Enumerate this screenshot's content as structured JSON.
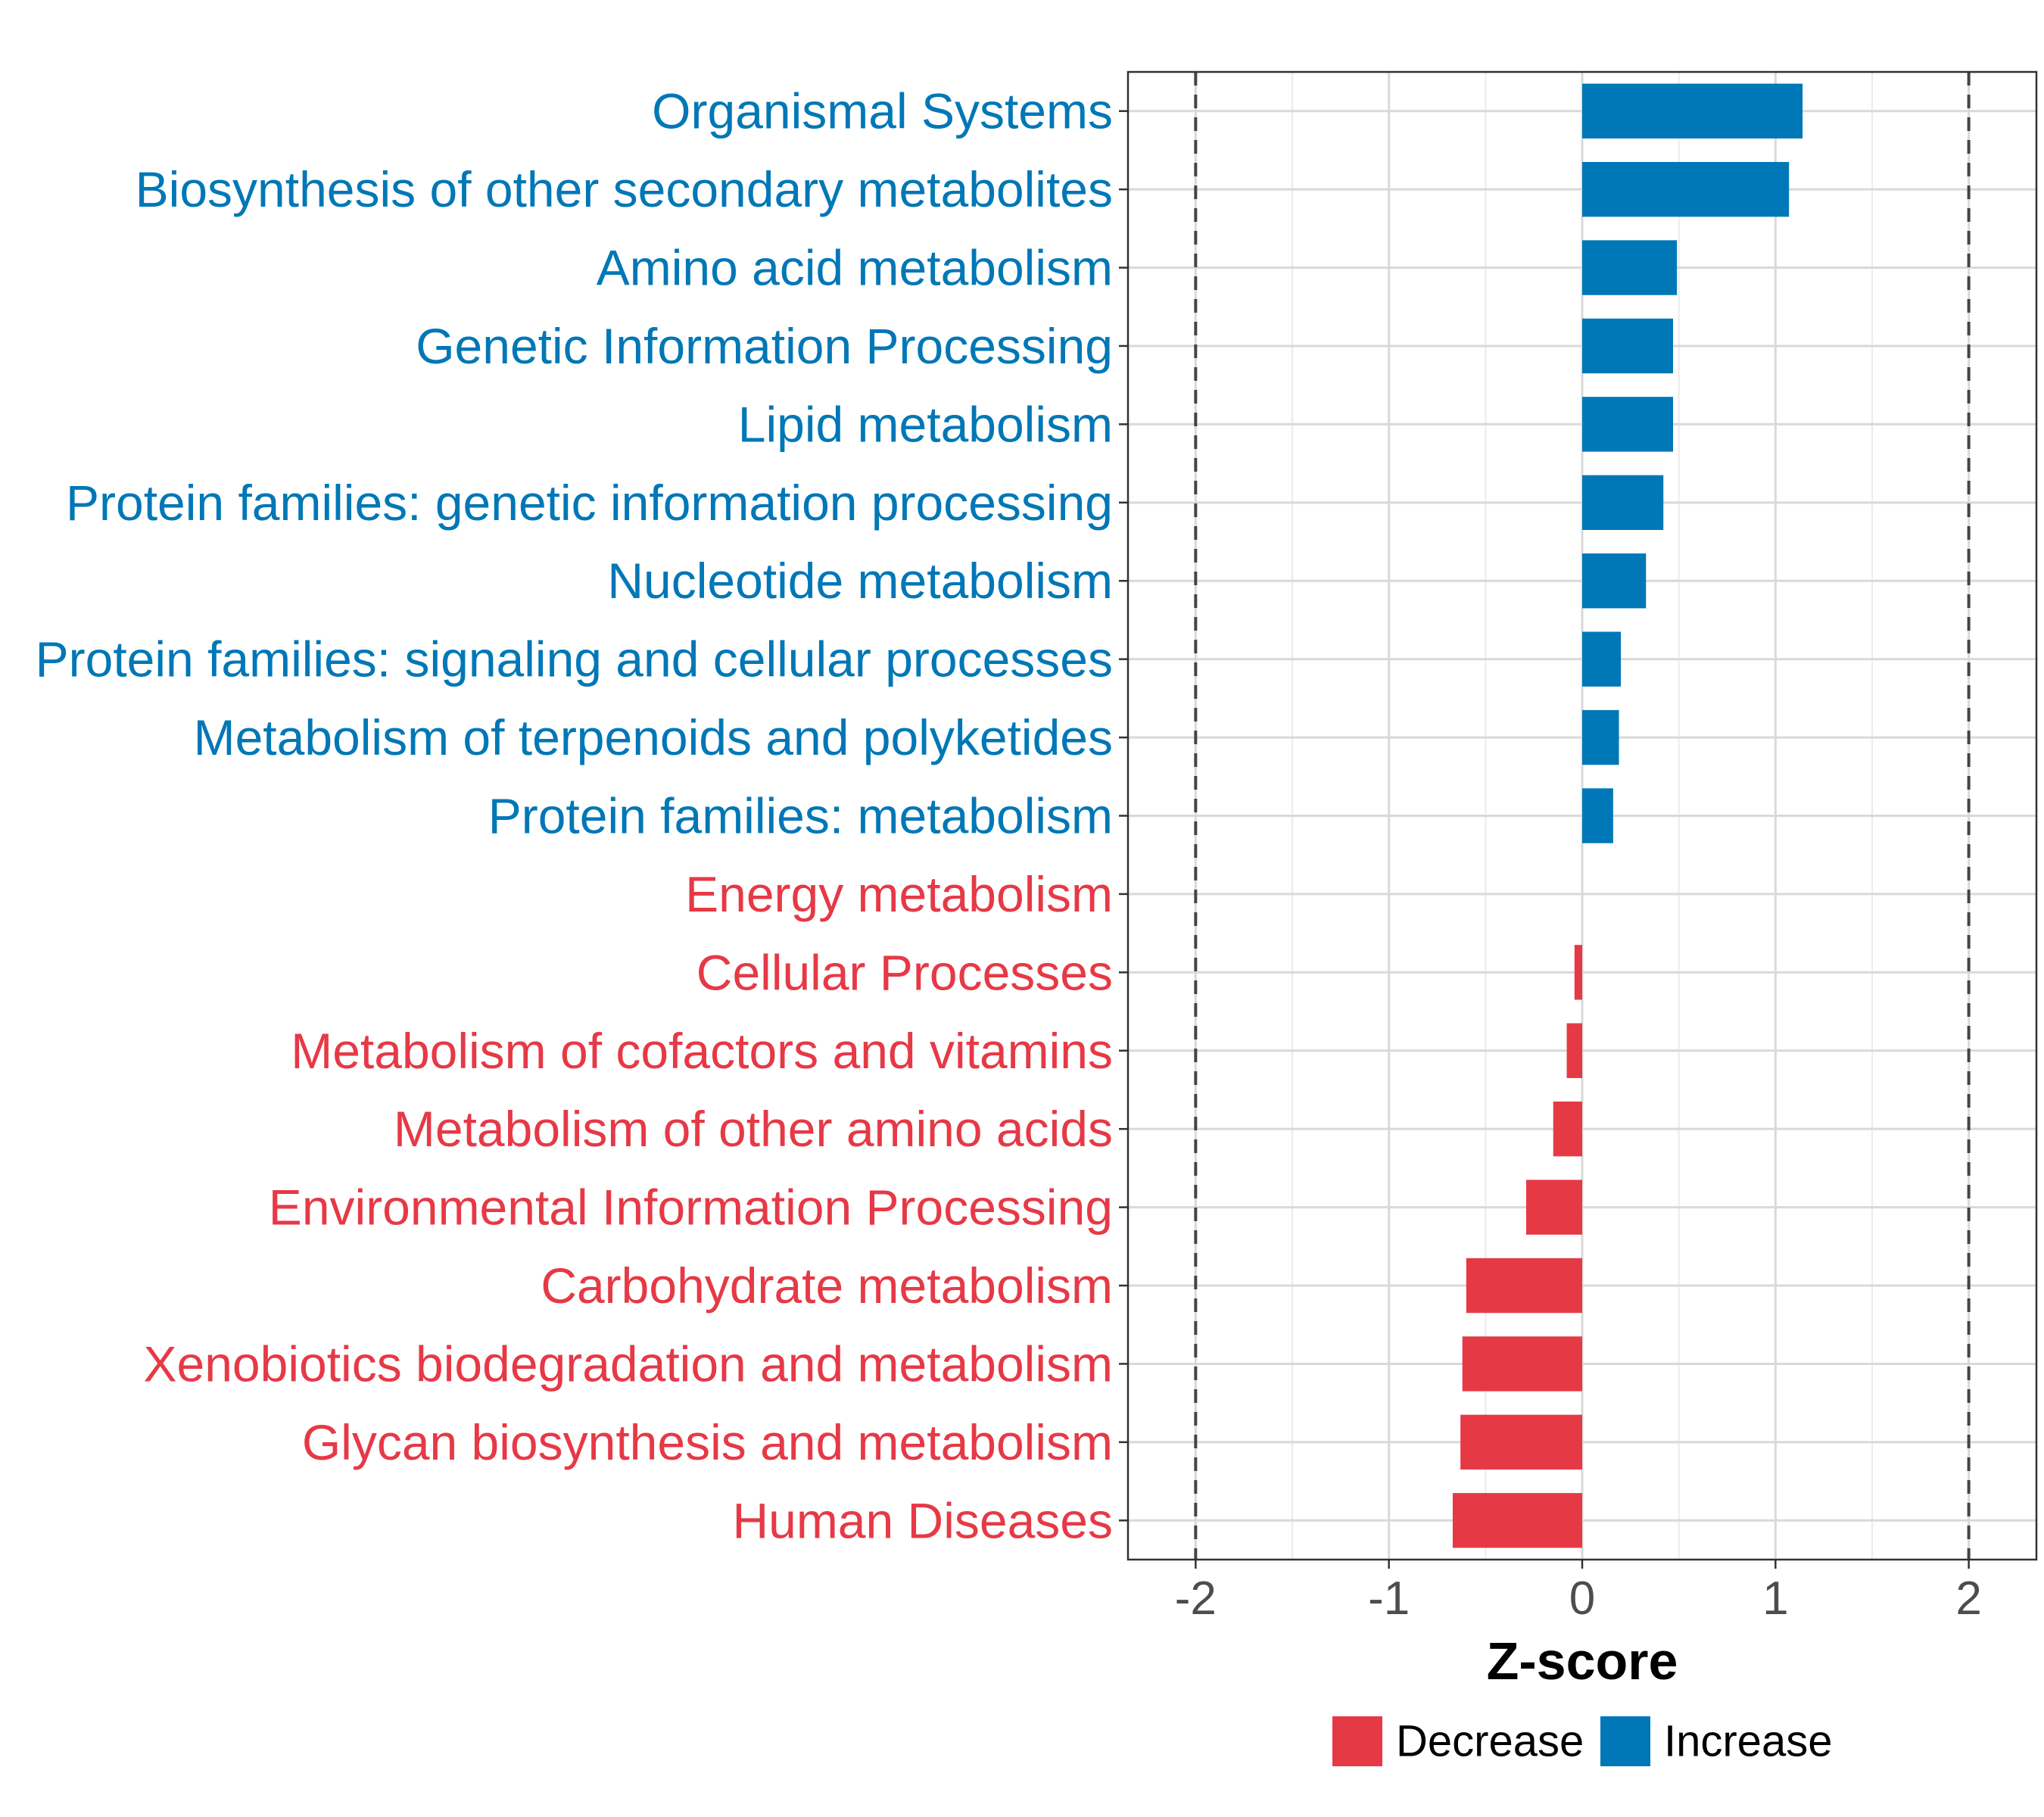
{
  "chart_data": {
    "type": "bar",
    "orientation": "horizontal",
    "title": "",
    "xlabel": "Z-score",
    "ylabel": "",
    "xlim": [
      -2.35,
      2.35
    ],
    "xticks": [
      -2,
      -1,
      0,
      1,
      2
    ],
    "xtick_labels": [
      "-2",
      "-1",
      "0",
      "1",
      "2"
    ],
    "threshold_lines": [
      -2,
      2
    ],
    "grid": true,
    "legend_position": "bottom",
    "colors": {
      "Increase": "#0077b6",
      "Decrease": "#e63946"
    },
    "legend": [
      {
        "label": "Decrease",
        "color": "#e63946"
      },
      {
        "label": "Increase",
        "color": "#0077b6"
      }
    ],
    "categories": [
      "Organismal Systems",
      "Biosynthesis of other secondary metabolites",
      "Amino acid metabolism",
      "Genetic Information Processing",
      "Lipid metabolism",
      "Protein families: genetic information processing",
      "Nucleotide metabolism",
      "Protein families: signaling and cellular processes",
      "Metabolism of terpenoids and polyketides",
      "Protein families: metabolism",
      "Energy metabolism",
      "Cellular Processes",
      "Metabolism of cofactors and vitamins",
      "Metabolism of other amino acids",
      "Environmental Information Processing",
      "Carbohydrate metabolism",
      "Xenobiotics biodegradation and metabolism",
      "Glycan biosynthesis and metabolism",
      "Human Diseases"
    ],
    "values": [
      1.14,
      1.07,
      0.49,
      0.47,
      0.47,
      0.42,
      0.33,
      0.2,
      0.19,
      0.16,
      0.0,
      -0.04,
      -0.08,
      -0.15,
      -0.29,
      -0.6,
      -0.62,
      -0.63,
      -0.67
    ],
    "groups": [
      "Increase",
      "Increase",
      "Increase",
      "Increase",
      "Increase",
      "Increase",
      "Increase",
      "Increase",
      "Increase",
      "Increase",
      "Decrease",
      "Decrease",
      "Decrease",
      "Decrease",
      "Decrease",
      "Decrease",
      "Decrease",
      "Decrease",
      "Decrease"
    ]
  }
}
